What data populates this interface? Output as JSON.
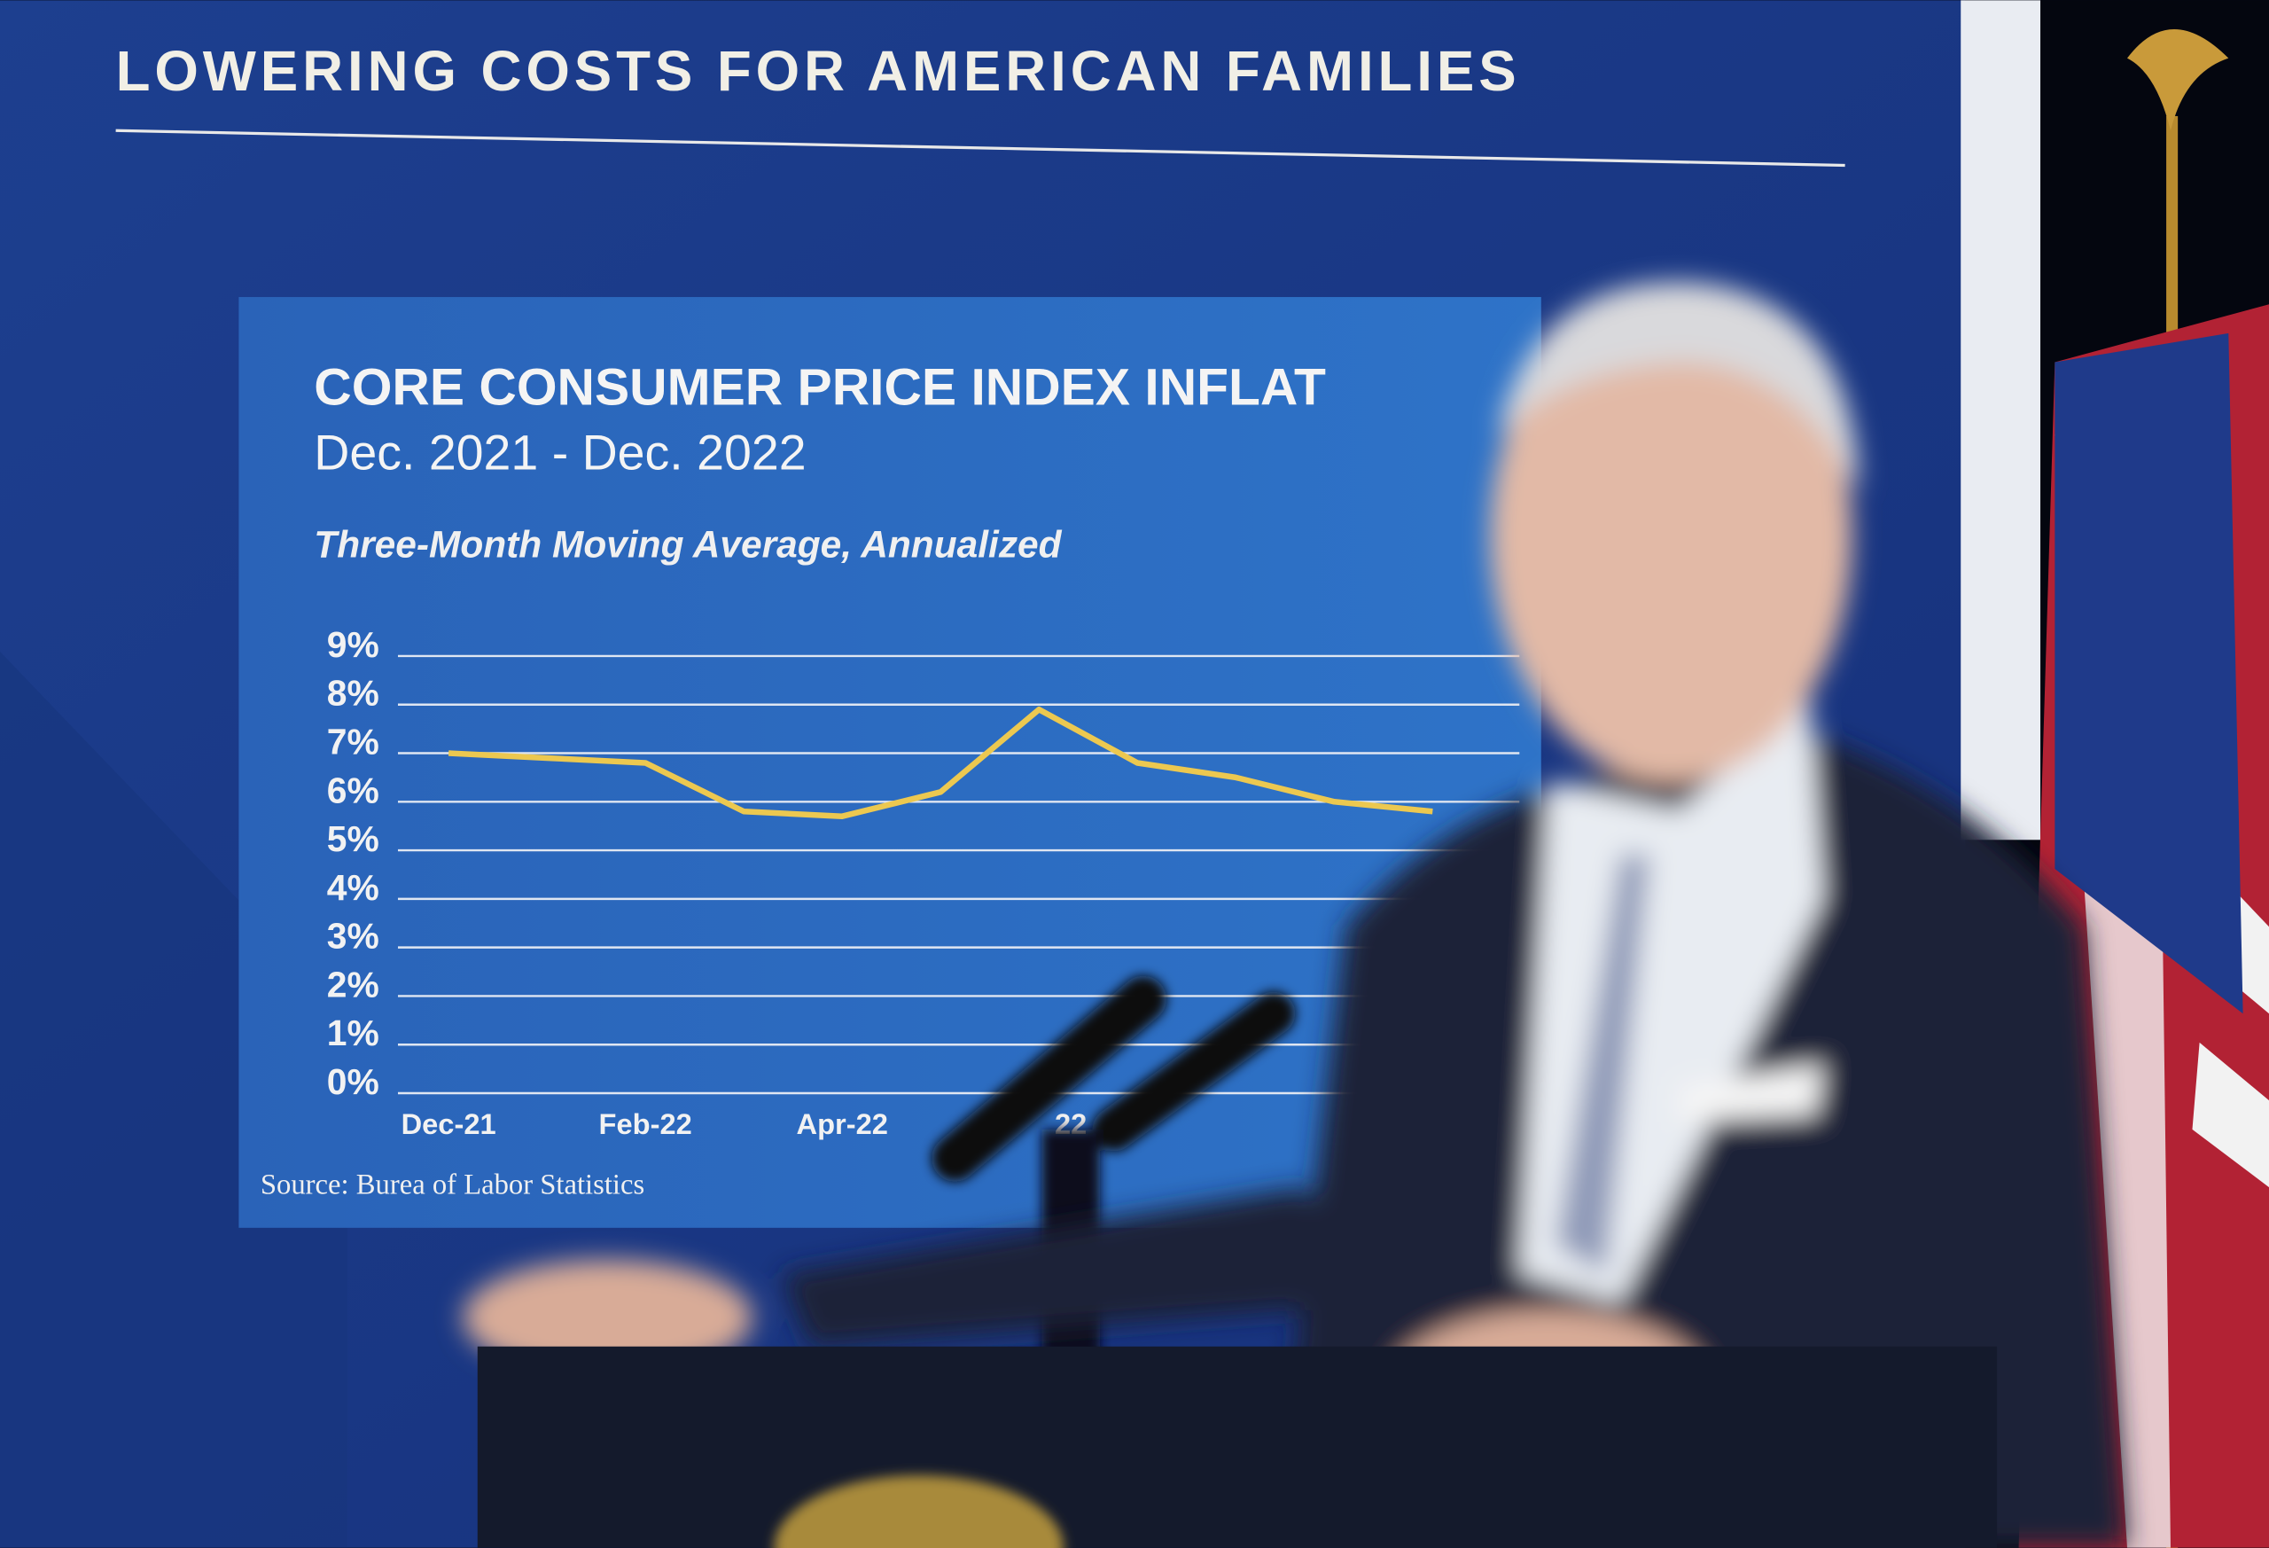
{
  "header": {
    "title": "LOWERING COSTS FOR AMERICAN FAMILIES"
  },
  "chart_data": {
    "type": "line",
    "title": "CORE CONSUMER PRICE INDEX INFLAT",
    "subtitle": "Dec. 2021 - Dec. 2022",
    "y_label": "Three-Month Moving Average, Annualized",
    "source": "Source: Burea of Labor Statistics",
    "categories": [
      "Dec-21",
      null,
      "Feb-22",
      null,
      "Apr-22",
      null,
      "22",
      null,
      null,
      null,
      null,
      null,
      null
    ],
    "series": [
      {
        "name": "Core CPI",
        "color": "#ecc850",
        "values": [
          7.0,
          6.9,
          6.8,
          5.8,
          5.7,
          6.2,
          7.9,
          6.8,
          6.5,
          6.0,
          5.8,
          null,
          null
        ]
      }
    ],
    "ylim": [
      0,
      9
    ],
    "yticks": [
      {
        "value": 0,
        "label": "0%"
      },
      {
        "value": 1,
        "label": "1%"
      },
      {
        "value": 2,
        "label": "2%"
      },
      {
        "value": 3,
        "label": "3%"
      },
      {
        "value": 4,
        "label": "4%"
      },
      {
        "value": 5,
        "label": "5%"
      },
      {
        "value": 6,
        "label": "6%"
      },
      {
        "value": 7,
        "label": "7%"
      },
      {
        "value": 8,
        "label": "8%"
      },
      {
        "value": 9,
        "label": "9%"
      }
    ],
    "grid": true
  }
}
